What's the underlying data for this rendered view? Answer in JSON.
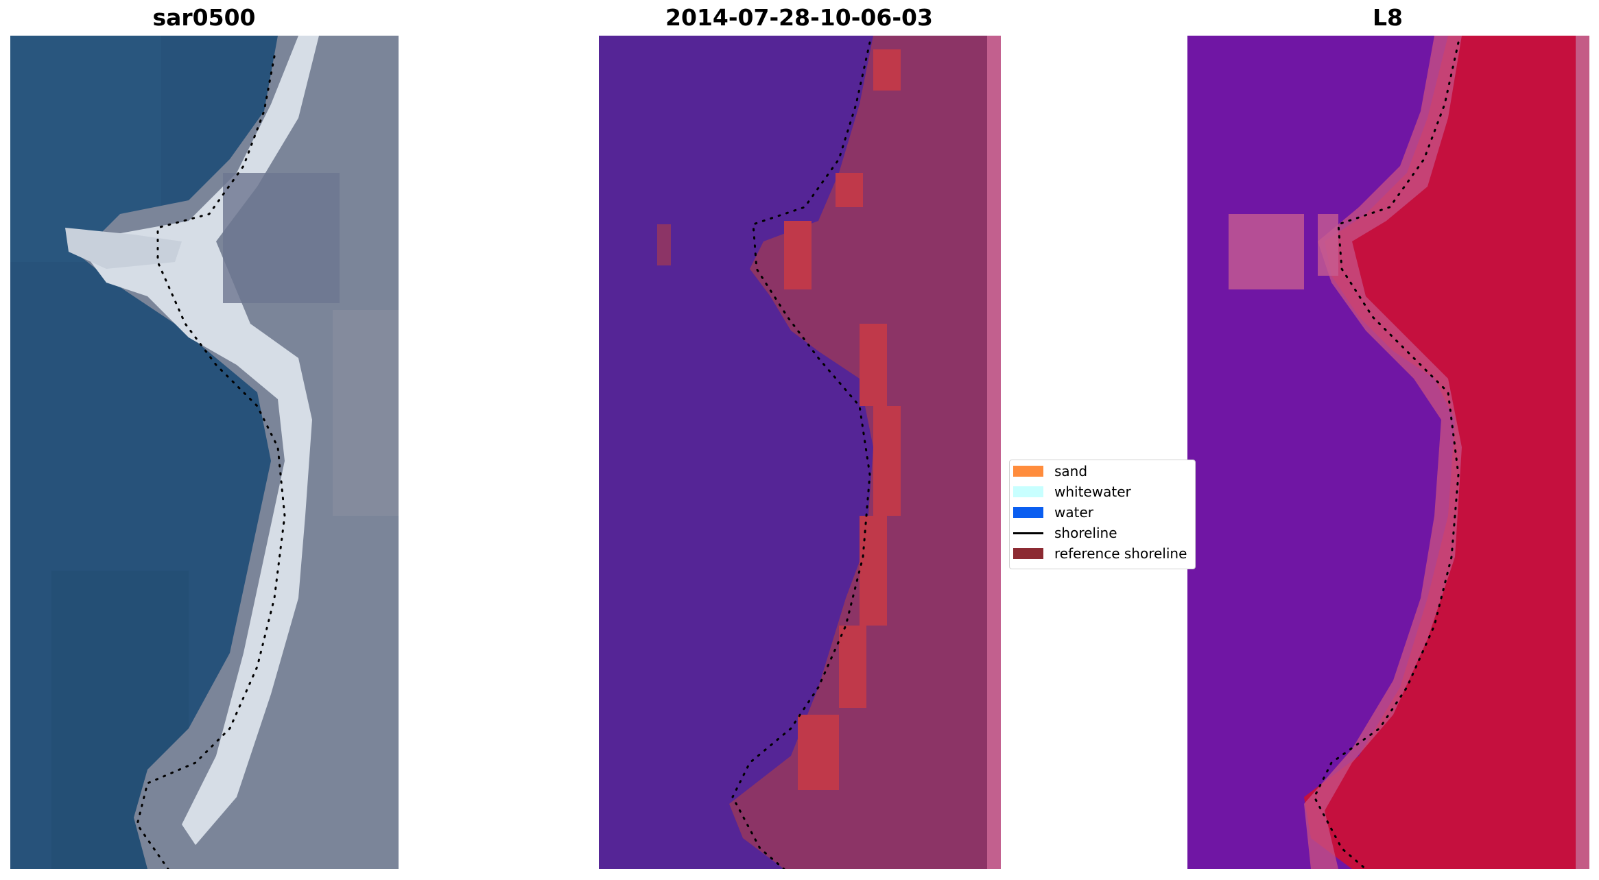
{
  "panels": [
    {
      "id": "rgb",
      "title": "sar0500",
      "image_description": "true-color satellite image of coastline with sandy beach and detected shoreline dots"
    },
    {
      "id": "classified",
      "title": "2014-07-28-10-06-03",
      "image_description": "classified image with water in purple and land/sand/reference shoreline in magenta and red"
    },
    {
      "id": "index",
      "title": "L8",
      "image_description": "index image with water in violet and land in crimson with detected shoreline dots"
    }
  ],
  "legend": {
    "items": [
      {
        "label": "sand",
        "color": "#ff8c3c",
        "kind": "patch"
      },
      {
        "label": "whitewater",
        "color": "#c8ffff",
        "kind": "patch"
      },
      {
        "label": "water",
        "color": "#0a5ef0",
        "kind": "patch"
      },
      {
        "label": "shoreline",
        "color": "#000000",
        "kind": "line"
      },
      {
        "label": "reference shoreline",
        "color": "#8c2a32",
        "kind": "patch"
      }
    ]
  },
  "colors": {
    "water_rgb": "#27527a",
    "land_rgb": "#7b8599",
    "beach_rgb": "#d6dde6",
    "water_class": "#552596",
    "land_class": "#8c3466",
    "ref_shoreline": "#c0394a",
    "edge_class": "#c2608e",
    "water_index": "#7016a4",
    "land_index": "#c5103e",
    "edge_index": "#c45b86"
  }
}
